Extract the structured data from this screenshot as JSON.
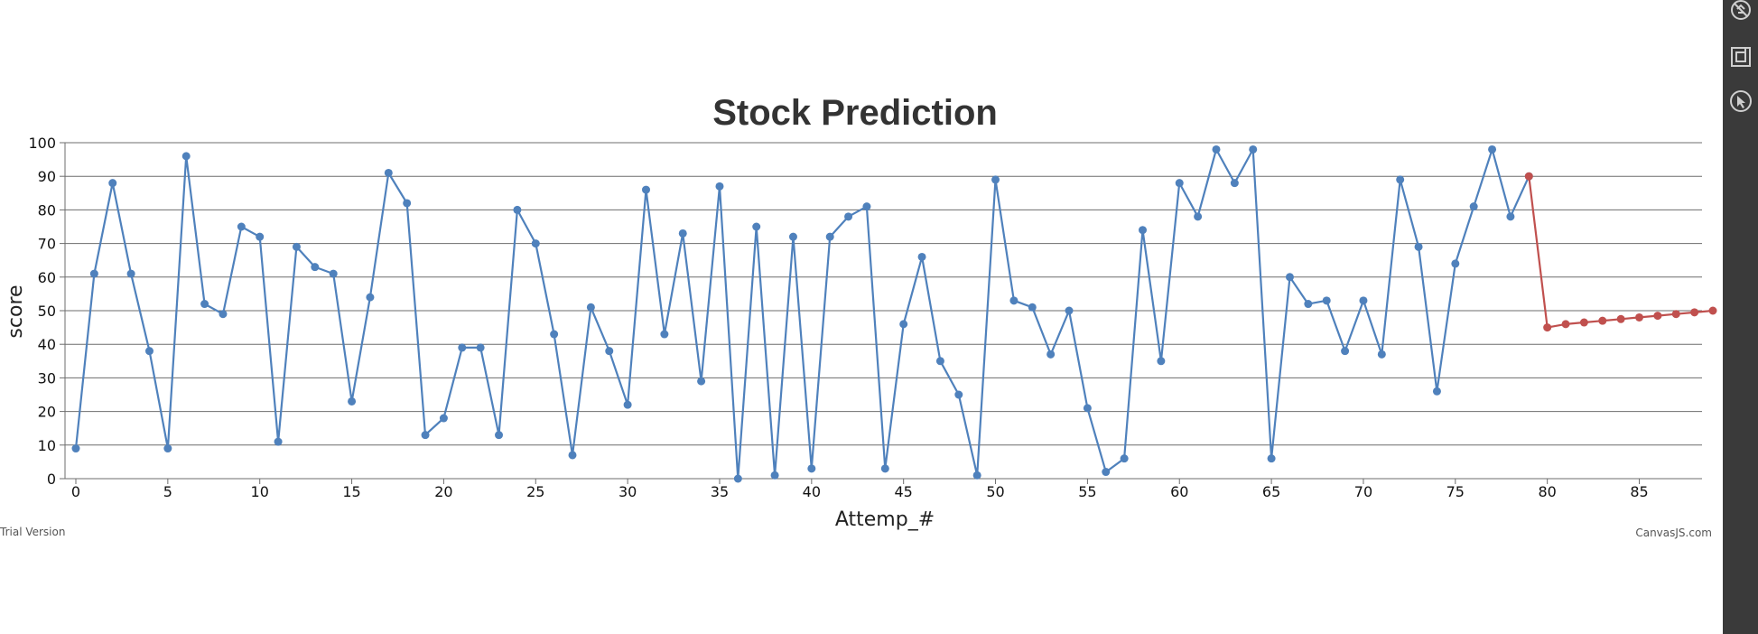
{
  "chart_data": {
    "type": "line",
    "title": "Stock Prediction",
    "xlabel": "Attemp_#",
    "ylabel": "score",
    "xlim": [
      0,
      89
    ],
    "ylim": [
      0,
      100
    ],
    "x_ticks": [
      0,
      5,
      10,
      15,
      20,
      25,
      30,
      35,
      40,
      45,
      50,
      55,
      60,
      65,
      70,
      75,
      80,
      85
    ],
    "y_ticks": [
      0,
      10,
      20,
      30,
      40,
      50,
      60,
      70,
      80,
      90,
      100
    ],
    "grid": true,
    "series": [
      {
        "color": "#4f81bc",
        "x": [
          0,
          1,
          2,
          3,
          4,
          5,
          6,
          7,
          8,
          9,
          10,
          11,
          12,
          13,
          14,
          15,
          16,
          17,
          18,
          19,
          20,
          21,
          22,
          23,
          24,
          25,
          26,
          27,
          28,
          29,
          30,
          31,
          32,
          33,
          34,
          35,
          36,
          37,
          38,
          39,
          40,
          41,
          42,
          43,
          44,
          45,
          46,
          47,
          48,
          49,
          50,
          51,
          52,
          53,
          54,
          55,
          56,
          57,
          58,
          59,
          60,
          61,
          62,
          63,
          64,
          65,
          66,
          67,
          68,
          69,
          70,
          71,
          72,
          73,
          74,
          75,
          76,
          77,
          78,
          79
        ],
        "values": [
          9,
          61,
          88,
          61,
          38,
          9,
          96,
          52,
          49,
          75,
          72,
          11,
          69,
          63,
          61,
          23,
          54,
          91,
          82,
          13,
          18,
          39,
          39,
          13,
          80,
          70,
          43,
          7,
          51,
          38,
          22,
          86,
          43,
          73,
          29,
          87,
          0,
          75,
          1,
          72,
          3,
          72,
          78,
          81,
          3,
          46,
          66,
          35,
          25,
          1,
          89,
          53,
          51,
          37,
          50,
          21,
          2,
          6,
          74,
          35,
          88,
          78,
          98,
          88,
          98,
          6,
          60,
          52,
          53,
          38,
          53,
          37,
          89,
          69,
          26,
          64,
          81,
          98,
          78,
          90
        ]
      },
      {
        "color": "#c0504e",
        "x": [
          79,
          80,
          81,
          82,
          83,
          84,
          85,
          86,
          87,
          88,
          89
        ],
        "values": [
          90,
          45,
          46,
          46.5,
          47,
          47.5,
          48,
          48.5,
          49,
          49.5,
          50
        ]
      }
    ]
  },
  "credits": {
    "left": "Trial Version",
    "right": "CanvasJS.com"
  },
  "side_panel": {
    "background": "#3a3a3a",
    "icons": [
      "image-settings-icon",
      "crop-icon",
      "cursor-icon"
    ]
  }
}
